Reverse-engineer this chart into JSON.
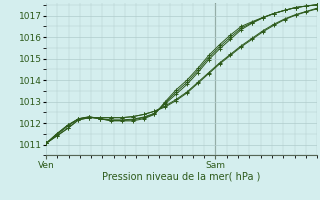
{
  "xlabel": "Pression niveau de la mer( hPa )",
  "bg_color": "#d4eeee",
  "plot_bg": "#d4eeee",
  "grid_color": "#b0cccc",
  "line_color": "#2d5a1b",
  "yticks": [
    1011,
    1012,
    1013,
    1014,
    1015,
    1016,
    1017
  ],
  "ylim": [
    1010.5,
    1017.6
  ],
  "xlim": [
    0,
    48
  ],
  "xtick_positions": [
    0,
    30
  ],
  "xtick_labels": [
    "Ven",
    "Sam"
  ],
  "vline_x": 30,
  "series": [
    [
      1011.05,
      1011.4,
      1011.75,
      1012.15,
      1012.25,
      1012.25,
      1012.25,
      1012.25,
      1012.3,
      1012.4,
      1012.55,
      1012.8,
      1013.1,
      1013.45,
      1013.9,
      1014.35,
      1014.8,
      1015.2,
      1015.6,
      1015.95,
      1016.3,
      1016.6,
      1016.85,
      1017.05,
      1017.2,
      1017.35
    ],
    [
      1011.05,
      1011.4,
      1011.75,
      1012.15,
      1012.25,
      1012.25,
      1012.25,
      1012.25,
      1012.3,
      1012.4,
      1012.55,
      1012.75,
      1013.05,
      1013.4,
      1013.85,
      1014.3,
      1014.75,
      1015.15,
      1015.55,
      1015.9,
      1016.25,
      1016.55,
      1016.82,
      1017.02,
      1017.18,
      1017.32
    ],
    [
      1011.05,
      1011.45,
      1011.85,
      1012.2,
      1012.28,
      1012.2,
      1012.15,
      1012.15,
      1012.18,
      1012.28,
      1012.45,
      1012.9,
      1013.35,
      1013.8,
      1014.35,
      1014.95,
      1015.45,
      1015.9,
      1016.35,
      1016.65,
      1016.9,
      1017.1,
      1017.25,
      1017.38,
      1017.45,
      1017.5
    ],
    [
      1011.05,
      1011.5,
      1011.9,
      1012.2,
      1012.3,
      1012.2,
      1012.1,
      1012.1,
      1012.1,
      1012.2,
      1012.4,
      1013.0,
      1013.55,
      1014.0,
      1014.55,
      1015.15,
      1015.65,
      1016.1,
      1016.5,
      1016.72,
      1016.92,
      1017.1,
      1017.25,
      1017.38,
      1017.45,
      1017.52
    ],
    [
      1011.05,
      1011.5,
      1011.9,
      1012.2,
      1012.28,
      1012.2,
      1012.12,
      1012.12,
      1012.15,
      1012.25,
      1012.42,
      1012.95,
      1013.45,
      1013.9,
      1014.45,
      1015.05,
      1015.55,
      1016.0,
      1016.42,
      1016.68,
      1016.91,
      1017.1,
      1017.25,
      1017.37,
      1017.45,
      1017.51
    ]
  ]
}
